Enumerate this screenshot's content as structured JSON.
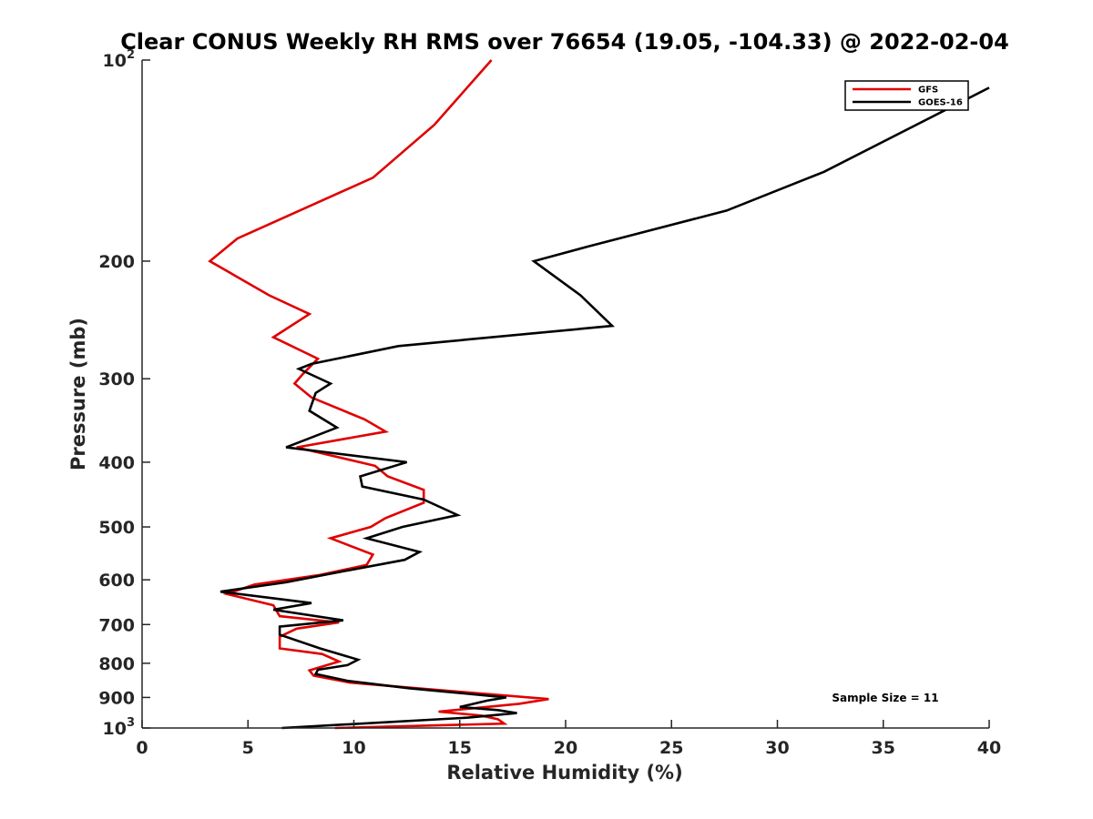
{
  "chart_data": {
    "type": "line",
    "title": "Clear CONUS Weekly RH RMS over 76654 (19.05, -104.33) @ 2022-02-04",
    "xlabel": "Relative Humidity (%)",
    "ylabel": "Pressure (mb)",
    "xlim": [
      0,
      40
    ],
    "ylim": [
      100,
      1000
    ],
    "yscale": "log",
    "yreversed": true,
    "xticks": [
      0,
      5,
      10,
      15,
      20,
      25,
      30,
      35,
      40
    ],
    "xtick_labels": [
      "0",
      "5",
      "10",
      "15",
      "20",
      "25",
      "30",
      "35",
      "40"
    ],
    "yticks": [
      {
        "value": 100,
        "base": "10",
        "exp": "2",
        "label": ""
      },
      {
        "value": 200,
        "label": "200"
      },
      {
        "value": 300,
        "label": "300"
      },
      {
        "value": 400,
        "label": "400"
      },
      {
        "value": 500,
        "label": "500"
      },
      {
        "value": 600,
        "label": "600"
      },
      {
        "value": 700,
        "label": "700"
      },
      {
        "value": 800,
        "label": "800"
      },
      {
        "value": 900,
        "label": "900"
      },
      {
        "value": 1000,
        "base": "10",
        "exp": "3",
        "label": ""
      }
    ],
    "legend_position": "top-right",
    "annotation": "Sample Size = 11",
    "series": [
      {
        "name": "GFS",
        "color": "#e00000",
        "points": [
          [
            16.5,
            100
          ],
          [
            13.8,
            125
          ],
          [
            10.9,
            150
          ],
          [
            4.5,
            185
          ],
          [
            3.2,
            200
          ],
          [
            6.0,
            225
          ],
          [
            7.9,
            240
          ],
          [
            6.2,
            260
          ],
          [
            8.3,
            280
          ],
          [
            7.6,
            295
          ],
          [
            7.2,
            305
          ],
          [
            8.0,
            320
          ],
          [
            10.5,
            345
          ],
          [
            11.5,
            360
          ],
          [
            7.3,
            380
          ],
          [
            11.0,
            405
          ],
          [
            11.6,
            420
          ],
          [
            13.3,
            440
          ],
          [
            13.3,
            460
          ],
          [
            11.5,
            485
          ],
          [
            10.8,
            500
          ],
          [
            8.9,
            520
          ],
          [
            10.9,
            550
          ],
          [
            10.6,
            570
          ],
          [
            8.4,
            590
          ],
          [
            5.3,
            610
          ],
          [
            4.0,
            630
          ],
          [
            6.2,
            655
          ],
          [
            6.5,
            680
          ],
          [
            9.3,
            695
          ],
          [
            7.3,
            710
          ],
          [
            6.5,
            730
          ],
          [
            6.5,
            760
          ],
          [
            8.5,
            775
          ],
          [
            9.3,
            795
          ],
          [
            7.9,
            820
          ],
          [
            8.1,
            835
          ],
          [
            9.8,
            855
          ],
          [
            12.6,
            870
          ],
          [
            19.2,
            905
          ],
          [
            17.8,
            920
          ],
          [
            14.0,
            945
          ],
          [
            16.0,
            958
          ],
          [
            16.8,
            970
          ],
          [
            17.1,
            985
          ],
          [
            9.1,
            1000
          ]
        ]
      },
      {
        "name": "GOES-16",
        "color": "#000000",
        "points": [
          [
            40.0,
            110
          ],
          [
            32.2,
            147
          ],
          [
            27.6,
            168
          ],
          [
            21.1,
            190
          ],
          [
            18.5,
            200
          ],
          [
            20.7,
            225
          ],
          [
            22.2,
            250
          ],
          [
            12.1,
            268
          ],
          [
            8.0,
            285
          ],
          [
            7.4,
            290
          ],
          [
            8.9,
            305
          ],
          [
            8.2,
            315
          ],
          [
            7.9,
            335
          ],
          [
            9.2,
            355
          ],
          [
            6.8,
            380
          ],
          [
            12.5,
            400
          ],
          [
            10.3,
            420
          ],
          [
            10.4,
            435
          ],
          [
            13.3,
            455
          ],
          [
            14.9,
            480
          ],
          [
            12.3,
            500
          ],
          [
            10.6,
            520
          ],
          [
            13.1,
            545
          ],
          [
            12.4,
            560
          ],
          [
            9.2,
            585
          ],
          [
            6.8,
            605
          ],
          [
            3.7,
            625
          ],
          [
            8.0,
            650
          ],
          [
            6.2,
            665
          ],
          [
            9.5,
            690
          ],
          [
            6.5,
            705
          ],
          [
            6.5,
            725
          ],
          [
            8.4,
            760
          ],
          [
            10.2,
            790
          ],
          [
            9.7,
            805
          ],
          [
            8.3,
            818
          ],
          [
            8.2,
            830
          ],
          [
            9.7,
            850
          ],
          [
            12.6,
            872
          ],
          [
            17.2,
            900
          ],
          [
            16.3,
            910
          ],
          [
            15.0,
            930
          ],
          [
            16.8,
            940
          ],
          [
            17.7,
            950
          ],
          [
            15.4,
            965
          ],
          [
            6.6,
            1000
          ]
        ]
      }
    ]
  }
}
